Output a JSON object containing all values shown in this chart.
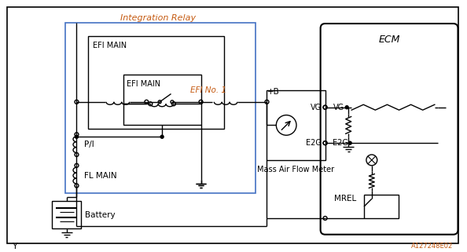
{
  "title": "Integration Relay",
  "ecm_label": "ECM",
  "efi_main_label": "EFI MAIN",
  "efi_main2_label": "EFI MAIN",
  "efi_no1_label": "EFI No. 1",
  "pi_label": "P/I",
  "fl_main_label": "FL MAIN",
  "battery_label": "Battery",
  "maf_label": "Mass Air Flow Meter",
  "mrel_label": "MREL",
  "vg_label": "VG",
  "e2g_label": "E2G",
  "plus_b_label": "+B",
  "y_label": "Y",
  "watermark": "A127248E02",
  "bg_color": "#ffffff",
  "line_color": "#000000",
  "blue": "#4472C4",
  "orange": "#C55A11"
}
